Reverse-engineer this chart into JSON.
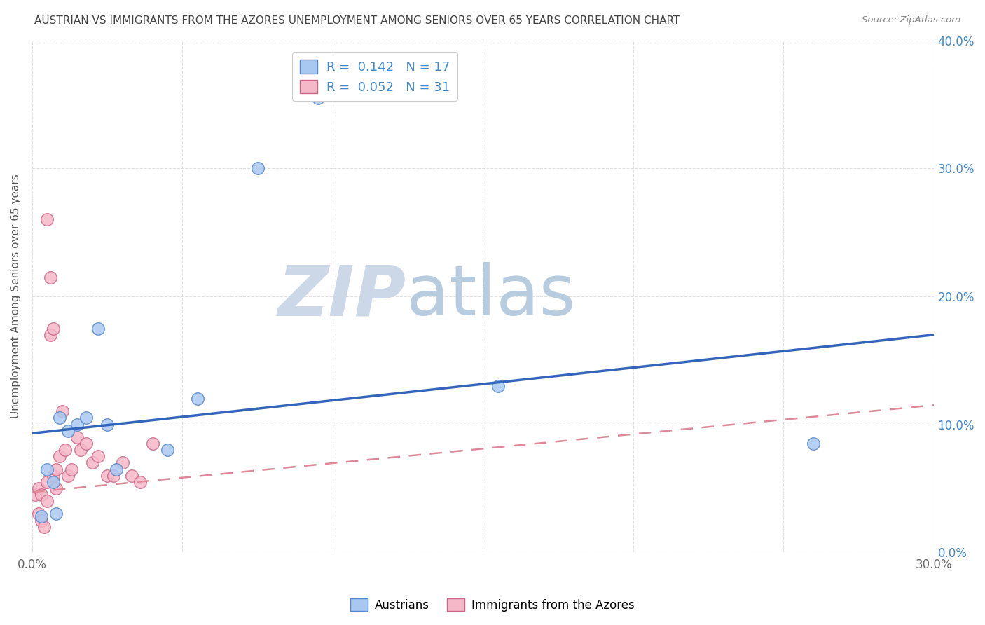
{
  "title": "AUSTRIAN VS IMMIGRANTS FROM THE AZORES UNEMPLOYMENT AMONG SENIORS OVER 65 YEARS CORRELATION CHART",
  "source": "Source: ZipAtlas.com",
  "ylabel": "Unemployment Among Seniors over 65 years",
  "xlim": [
    0.0,
    0.3
  ],
  "ylim": [
    0.0,
    0.4
  ],
  "x_tick_positions": [
    0.0,
    0.05,
    0.1,
    0.15,
    0.2,
    0.25,
    0.3
  ],
  "y_tick_positions": [
    0.0,
    0.1,
    0.2,
    0.3,
    0.4
  ],
  "blue_scatter_x": [
    0.003,
    0.005,
    0.007,
    0.008,
    0.009,
    0.012,
    0.015,
    0.018,
    0.022,
    0.025,
    0.028,
    0.045,
    0.055,
    0.075,
    0.095,
    0.155,
    0.26
  ],
  "blue_scatter_y": [
    0.028,
    0.065,
    0.055,
    0.03,
    0.105,
    0.095,
    0.1,
    0.105,
    0.175,
    0.1,
    0.065,
    0.08,
    0.12,
    0.3,
    0.355,
    0.13,
    0.085
  ],
  "pink_scatter_x": [
    0.001,
    0.002,
    0.002,
    0.003,
    0.003,
    0.004,
    0.005,
    0.005,
    0.006,
    0.007,
    0.008,
    0.008,
    0.009,
    0.01,
    0.011,
    0.012,
    0.013,
    0.015,
    0.016,
    0.018,
    0.02,
    0.022,
    0.025,
    0.027,
    0.03,
    0.033,
    0.036,
    0.04,
    0.005,
    0.006,
    0.007
  ],
  "pink_scatter_y": [
    0.045,
    0.03,
    0.05,
    0.025,
    0.045,
    0.02,
    0.04,
    0.055,
    0.17,
    0.06,
    0.05,
    0.065,
    0.075,
    0.11,
    0.08,
    0.06,
    0.065,
    0.09,
    0.08,
    0.085,
    0.07,
    0.075,
    0.06,
    0.06,
    0.07,
    0.06,
    0.055,
    0.085,
    0.26,
    0.215,
    0.175
  ],
  "blue_line_x": [
    0.0,
    0.3
  ],
  "blue_line_y": [
    0.093,
    0.17
  ],
  "pink_line_x": [
    0.0,
    0.3
  ],
  "pink_line_y": [
    0.047,
    0.115
  ],
  "blue_scatter_color": "#a8c8f0",
  "blue_scatter_edge": "#5588cc",
  "pink_scatter_color": "#f5b8c8",
  "pink_scatter_edge": "#cc6688",
  "blue_line_color": "#3366bb",
  "pink_line_color": "#dd8899",
  "legend_R_blue": "0.142",
  "legend_N_blue": "17",
  "legend_R_pink": "0.052",
  "legend_N_pink": "31",
  "legend_label_blue": "Austrians",
  "legend_label_pink": "Immigrants from the Azores",
  "background_color": "#ffffff",
  "grid_color": "#cccccc",
  "title_color": "#444444",
  "watermark_zip_color": "#ccd8e8",
  "watermark_atlas_color": "#b8cce0",
  "right_ytick_color": "#4488cc",
  "accent_color": "#4488cc"
}
